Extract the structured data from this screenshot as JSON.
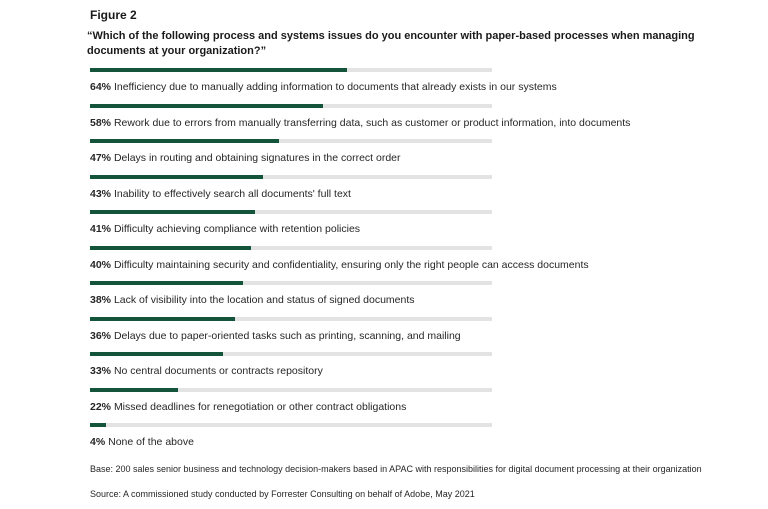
{
  "figure_label": "Figure 2",
  "question": "“Which of the following process and systems issues do you encounter with paper-based processes when managing documents at your organization?”",
  "colors": {
    "bar_fill": "#13543a",
    "bar_track": "#e3e3e3"
  },
  "chart_data": {
    "type": "bar",
    "orientation": "horizontal",
    "xlim": [
      0,
      100
    ],
    "unit": "%",
    "items": [
      {
        "pct_label": "64%",
        "value": 64,
        "text": "Inefficiency due to manually adding information to documents that already exists in our systems"
      },
      {
        "pct_label": "58%",
        "value": 58,
        "text": "Rework due to errors from manually transferring data, such as customer or product information, into documents"
      },
      {
        "pct_label": "47%",
        "value": 47,
        "text": "Delays in routing and obtaining signatures in the correct order"
      },
      {
        "pct_label": "43%",
        "value": 43,
        "text": "Inability to effectively search all documents' full text"
      },
      {
        "pct_label": "41%",
        "value": 41,
        "text": "Difficulty achieving compliance with retention policies"
      },
      {
        "pct_label": "40%",
        "value": 40,
        "text": "Difficulty maintaining security and confidentiality, ensuring only the right people can access documents"
      },
      {
        "pct_label": "38%",
        "value": 38,
        "text": "Lack of visibility into the location and status of signed documents"
      },
      {
        "pct_label": "36%",
        "value": 36,
        "text": "Delays due to paper-oriented tasks such as printing, scanning, and mailing"
      },
      {
        "pct_label": "33%",
        "value": 33,
        "text": "No central documents or contracts repository"
      },
      {
        "pct_label": "22%",
        "value": 22,
        "text": "Missed deadlines for renegotiation or other contract obligations"
      },
      {
        "pct_label": "4%",
        "value": 4,
        "text": "None of the above"
      }
    ]
  },
  "notes": {
    "base": "Base: 200 sales senior business and technology decision-makers based in APAC with responsibilities for digital document processing at their organization",
    "source": "Source: A commissioned study conducted by Forrester Consulting on behalf of Adobe, May 2021"
  }
}
